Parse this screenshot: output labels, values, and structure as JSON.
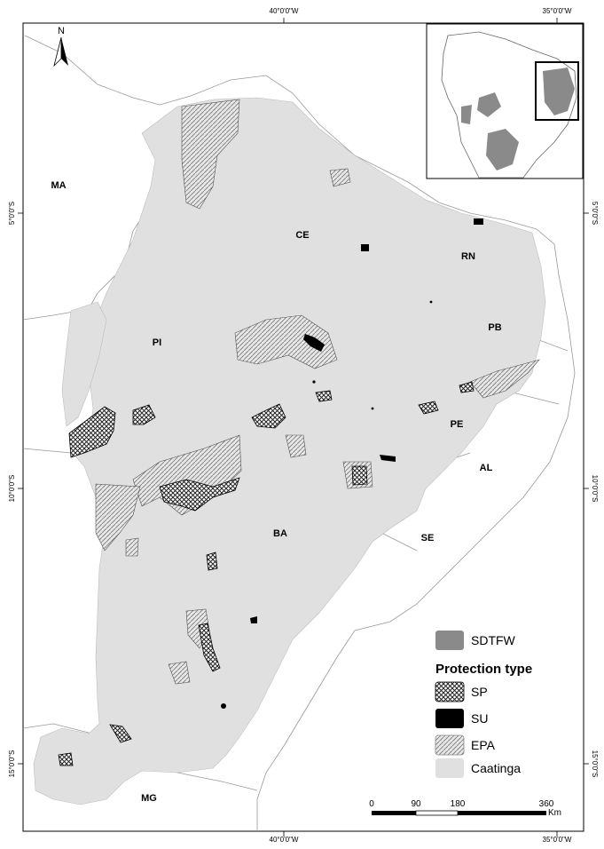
{
  "grid": {
    "top": [
      "40°0'0\"W",
      "35°0'0\"W"
    ],
    "bottom": [
      "40°0'0\"W",
      "35°0'0\"W"
    ],
    "left": [
      "5°0'0\"S",
      "10°0'0\"S",
      "15°0'0\"S"
    ],
    "right": [
      "5°0'0\"S",
      "10°0'0\"S",
      "15°0'0\"S"
    ]
  },
  "north_arrow": {
    "label": "N"
  },
  "states": {
    "ma": "MA",
    "pi": "PI",
    "ce": "CE",
    "rn": "RN",
    "pb": "PB",
    "pe": "PE",
    "al": "AL",
    "se": "SE",
    "ba": "BA",
    "mg": "MG"
  },
  "legend": {
    "sdtfw": "SDTFW",
    "title": "Protection type",
    "sp": "SP",
    "su": "SU",
    "epa": "EPA",
    "caatinga": "Caatinga"
  },
  "scale": {
    "ticks": [
      "0",
      "90",
      "180",
      "360"
    ],
    "unit": "Km"
  },
  "colors": {
    "caatinga": "#e0e0e0",
    "sdtfw": "#8a8a8a",
    "su": "#000000",
    "border": "#999999"
  }
}
